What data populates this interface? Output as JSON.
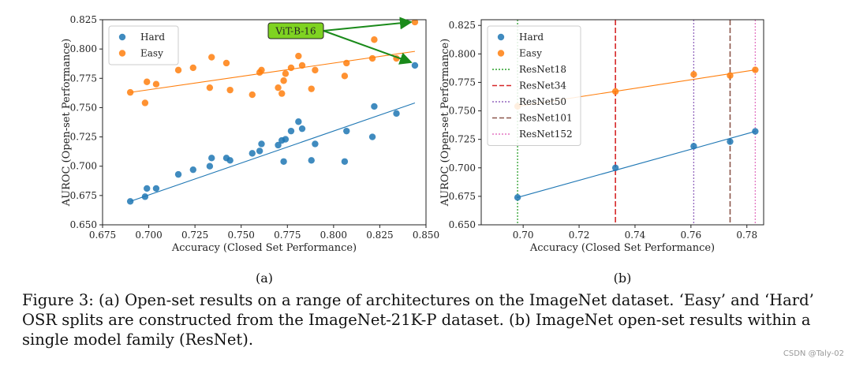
{
  "chart_data": [
    {
      "type": "scatter",
      "panel_label": "(a)",
      "xlabel": "Accuracy (Closed Set Performance)",
      "ylabel": "AUROC (Open-set Performance)",
      "xlim": [
        0.675,
        0.85
      ],
      "ylim": [
        0.65,
        0.825
      ],
      "xticks": [
        "0.675",
        "0.700",
        "0.725",
        "0.750",
        "0.775",
        "0.800",
        "0.825",
        "0.850"
      ],
      "yticks": [
        "0.650",
        "0.675",
        "0.700",
        "0.725",
        "0.750",
        "0.775",
        "0.800",
        "0.825"
      ],
      "legend": "top-left",
      "annotation": {
        "text": "ViT-B-16",
        "targets": [
          [
            0.844,
            0.823
          ],
          [
            0.844,
            0.786
          ]
        ]
      },
      "series": [
        {
          "name": "Hard",
          "color": "#1f77b4",
          "points": [
            [
              0.69,
              0.67
            ],
            [
              0.698,
              0.674
            ],
            [
              0.699,
              0.681
            ],
            [
              0.704,
              0.681
            ],
            [
              0.716,
              0.693
            ],
            [
              0.724,
              0.697
            ],
            [
              0.733,
              0.7
            ],
            [
              0.734,
              0.707
            ],
            [
              0.742,
              0.707
            ],
            [
              0.744,
              0.705
            ],
            [
              0.756,
              0.711
            ],
            [
              0.76,
              0.713
            ],
            [
              0.761,
              0.719
            ],
            [
              0.77,
              0.718
            ],
            [
              0.772,
              0.722
            ],
            [
              0.773,
              0.704
            ],
            [
              0.774,
              0.723
            ],
            [
              0.777,
              0.73
            ],
            [
              0.781,
              0.738
            ],
            [
              0.783,
              0.732
            ],
            [
              0.788,
              0.705
            ],
            [
              0.79,
              0.719
            ],
            [
              0.806,
              0.704
            ],
            [
              0.807,
              0.73
            ],
            [
              0.821,
              0.725
            ],
            [
              0.822,
              0.751
            ],
            [
              0.834,
              0.745
            ],
            [
              0.844,
              0.786
            ]
          ],
          "fit": [
            [
              0.69,
              0.67
            ],
            [
              0.844,
              0.754
            ]
          ]
        },
        {
          "name": "Easy",
          "color": "#ff7f0e",
          "points": [
            [
              0.69,
              0.763
            ],
            [
              0.698,
              0.754
            ],
            [
              0.699,
              0.772
            ],
            [
              0.704,
              0.77
            ],
            [
              0.716,
              0.782
            ],
            [
              0.724,
              0.784
            ],
            [
              0.733,
              0.767
            ],
            [
              0.734,
              0.793
            ],
            [
              0.742,
              0.788
            ],
            [
              0.744,
              0.765
            ],
            [
              0.756,
              0.761
            ],
            [
              0.76,
              0.78
            ],
            [
              0.761,
              0.782
            ],
            [
              0.77,
              0.767
            ],
            [
              0.772,
              0.762
            ],
            [
              0.773,
              0.773
            ],
            [
              0.774,
              0.779
            ],
            [
              0.777,
              0.784
            ],
            [
              0.781,
              0.794
            ],
            [
              0.783,
              0.786
            ],
            [
              0.788,
              0.766
            ],
            [
              0.79,
              0.782
            ],
            [
              0.806,
              0.777
            ],
            [
              0.807,
              0.788
            ],
            [
              0.821,
              0.792
            ],
            [
              0.822,
              0.808
            ],
            [
              0.834,
              0.792
            ],
            [
              0.844,
              0.823
            ]
          ],
          "fit": [
            [
              0.69,
              0.763
            ],
            [
              0.844,
              0.798
            ]
          ]
        }
      ]
    },
    {
      "type": "scatter",
      "panel_label": "(b)",
      "xlabel": "Accuracy (Closed Set Performance)",
      "ylabel": "AUROC (Open-set Performance)",
      "xlim": [
        0.685,
        0.786
      ],
      "ylim": [
        0.65,
        0.83
      ],
      "xticks": [
        "0.70",
        "0.72",
        "0.74",
        "0.76",
        "0.78"
      ],
      "yticks": [
        "0.650",
        "0.675",
        "0.700",
        "0.725",
        "0.750",
        "0.775",
        "0.800",
        "0.825"
      ],
      "legend": "top-left",
      "series": [
        {
          "name": "Hard",
          "color": "#1f77b4",
          "points": [
            [
              0.698,
              0.674
            ],
            [
              0.733,
              0.7
            ],
            [
              0.761,
              0.719
            ],
            [
              0.774,
              0.723
            ],
            [
              0.783,
              0.732
            ]
          ],
          "fit": [
            [
              0.698,
              0.674
            ],
            [
              0.783,
              0.732
            ]
          ]
        },
        {
          "name": "Easy",
          "color": "#ff7f0e",
          "points": [
            [
              0.698,
              0.754
            ],
            [
              0.733,
              0.767
            ],
            [
              0.761,
              0.782
            ],
            [
              0.774,
              0.781
            ],
            [
              0.783,
              0.786
            ]
          ],
          "fit": [
            [
              0.698,
              0.754
            ],
            [
              0.783,
              0.786
            ]
          ]
        }
      ],
      "vlines": [
        {
          "name": "ResNet18",
          "x": 0.698,
          "color": "#2ca02c",
          "dash": "dotted"
        },
        {
          "name": "ResNet34",
          "x": 0.733,
          "color": "#d62728",
          "dash": "dashed"
        },
        {
          "name": "ResNet50",
          "x": 0.761,
          "color": "#9467bd",
          "dash": "dotted"
        },
        {
          "name": "ResNet101",
          "x": 0.774,
          "color": "#8c564b",
          "dash": "dashed"
        },
        {
          "name": "ResNet152",
          "x": 0.783,
          "color": "#e377c2",
          "dash": "dotted"
        }
      ]
    }
  ],
  "caption": {
    "text": "Figure 3: (a) Open-set results on a range of architectures on the ImageNet dataset. ‘Easy’ and ‘Hard’ OSR splits are constructed from the ImageNet-21K-P dataset. (b) ImageNet open-set results within a single model family (ResNet)."
  },
  "watermark": "CSDN @Taly-02",
  "colors": {
    "hard": "#1f77b4",
    "easy": "#ff7f0e",
    "annotation_bg": "#7fd321",
    "arrow": "#1a8a1a"
  }
}
